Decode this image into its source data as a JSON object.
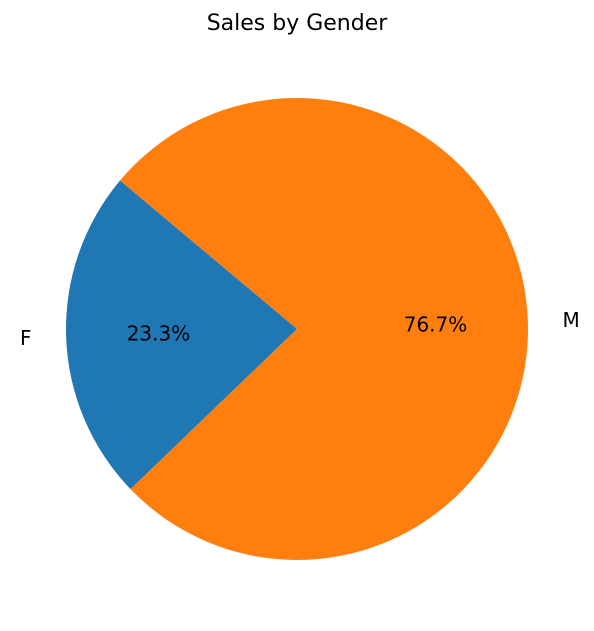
{
  "chart_data": {
    "type": "pie",
    "title": "Sales by Gender",
    "categories": [
      "F",
      "M"
    ],
    "values": [
      23.3,
      76.7
    ],
    "value_labels": [
      "23.3%",
      "76.7%"
    ],
    "colors": [
      "#1f77b4",
      "#ff7f0e"
    ],
    "start_angle_degrees": 140,
    "direction": "counterclockwise"
  }
}
